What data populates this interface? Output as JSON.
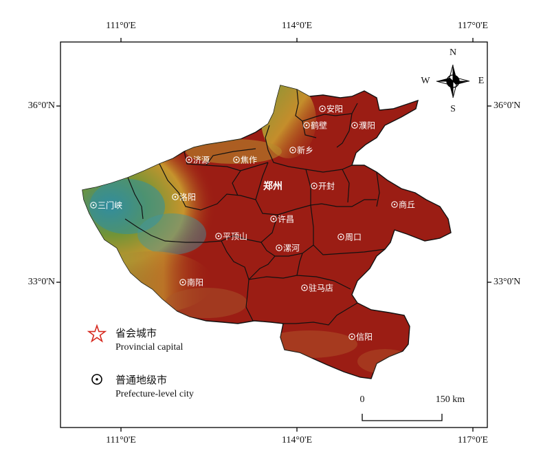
{
  "axes": {
    "longitude_ticks": [
      "111°0'E",
      "114°0'E",
      "117°0'E"
    ],
    "latitude_ticks": [
      "36°0'N",
      "33°0'N"
    ]
  },
  "compass": {
    "n": "N",
    "s": "S",
    "e": "E",
    "w": "W"
  },
  "cities": [
    {
      "name": "安阳",
      "kind": "prefecture"
    },
    {
      "name": "鹤壁",
      "kind": "prefecture"
    },
    {
      "name": "濮阳",
      "kind": "prefecture"
    },
    {
      "name": "新乡",
      "kind": "prefecture"
    },
    {
      "name": "济源",
      "kind": "prefecture"
    },
    {
      "name": "焦作",
      "kind": "prefecture"
    },
    {
      "name": "郑州",
      "kind": "capital"
    },
    {
      "name": "开封",
      "kind": "prefecture"
    },
    {
      "name": "三门峡",
      "kind": "prefecture"
    },
    {
      "name": "洛阳",
      "kind": "prefecture"
    },
    {
      "name": "商丘",
      "kind": "prefecture"
    },
    {
      "name": "许昌",
      "kind": "prefecture"
    },
    {
      "name": "平顶山",
      "kind": "prefecture"
    },
    {
      "name": "周口",
      "kind": "prefecture"
    },
    {
      "name": "漯河",
      "kind": "prefecture"
    },
    {
      "name": "南阳",
      "kind": "prefecture"
    },
    {
      "name": "驻马店",
      "kind": "prefecture"
    },
    {
      "name": "信阳",
      "kind": "prefecture"
    }
  ],
  "legend": {
    "capital_cn": "省会城市",
    "capital_en": "Provincial capital",
    "prefecture_cn": "普通地级市",
    "prefecture_en": "Prefecture-level city"
  },
  "scale_bar": {
    "start": "0",
    "end": "150 km"
  },
  "colors": {
    "lowland": "#9b1d14",
    "midland": "#c99a2e",
    "upland": "#6f9a38",
    "highland": "#2f8fa0",
    "boundary": "#111111",
    "capital_star": "#d6281e"
  }
}
